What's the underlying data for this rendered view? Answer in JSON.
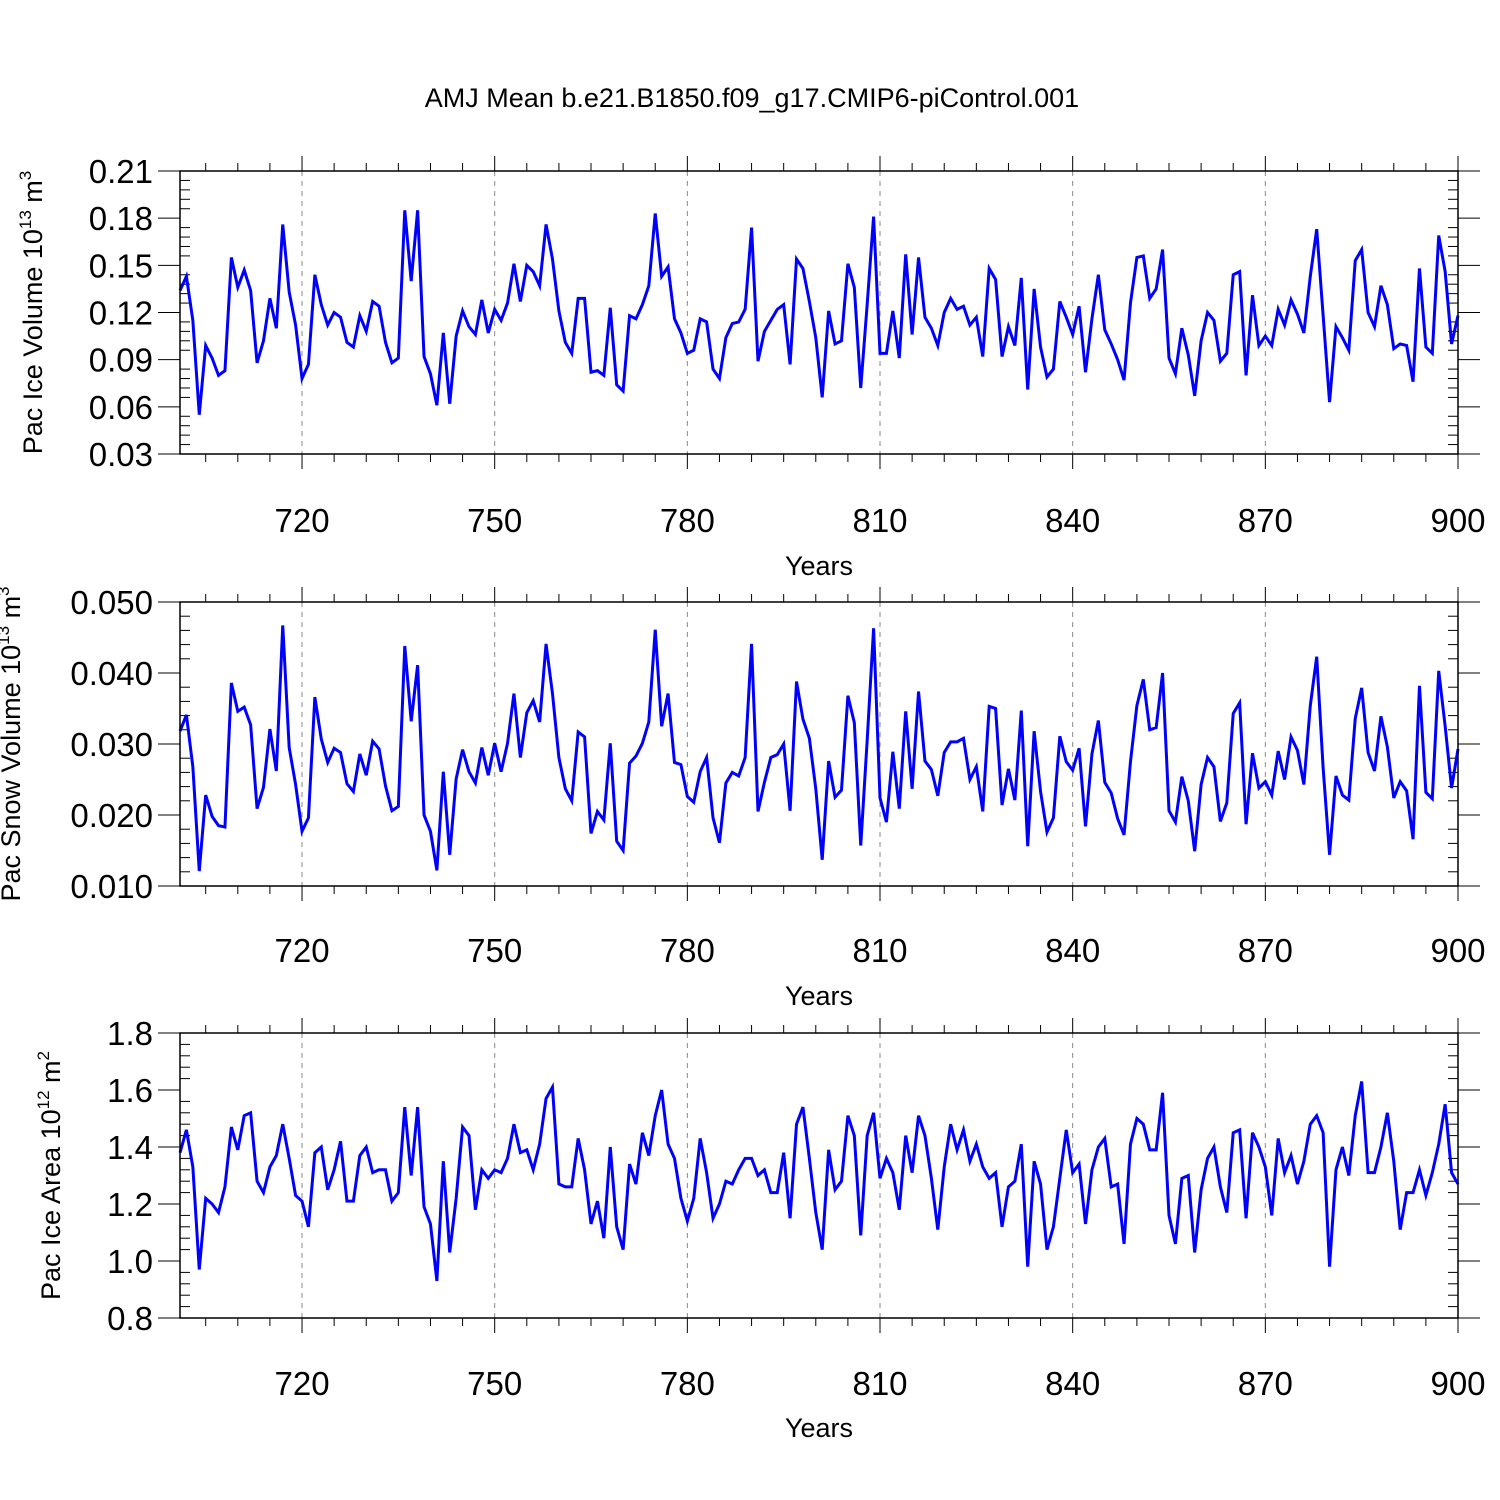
{
  "title": "AMJ Mean b.e21.B1850.f09_g17.CMIP6-piControl.001",
  "line_color": "#0000ff",
  "chart_data": [
    {
      "type": "line",
      "title": "AMJ Mean b.e21.B1850.f09_g17.CMIP6-piControl.001",
      "xlabel": "Years",
      "ylabel": "Pac Ice Volume 10",
      "ylabel_exp": "13",
      "ylabel_unit": " m",
      "ylabel_unit_exp": "3",
      "xlim": [
        701,
        900
      ],
      "ylim": [
        0.03,
        0.21
      ],
      "x_ticks": [
        "720",
        "750",
        "780",
        "810",
        "840",
        "870",
        "900"
      ],
      "y_ticks": [
        "0.03",
        "0.06",
        "0.09",
        "0.12",
        "0.15",
        "0.18",
        "0.21"
      ],
      "grid": "dashed vertical lines at major x ticks",
      "x_start": 701,
      "values": [
        0.134,
        0.143,
        0.115,
        0.055,
        0.099,
        0.091,
        0.08,
        0.083,
        0.155,
        0.136,
        0.147,
        0.134,
        0.088,
        0.102,
        0.129,
        0.11,
        0.176,
        0.133,
        0.112,
        0.078,
        0.087,
        0.144,
        0.125,
        0.112,
        0.12,
        0.117,
        0.101,
        0.098,
        0.118,
        0.108,
        0.127,
        0.124,
        0.101,
        0.088,
        0.091,
        0.185,
        0.14,
        0.185,
        0.092,
        0.081,
        0.061,
        0.107,
        0.062,
        0.105,
        0.121,
        0.111,
        0.106,
        0.128,
        0.107,
        0.122,
        0.115,
        0.126,
        0.151,
        0.127,
        0.15,
        0.146,
        0.137,
        0.176,
        0.154,
        0.121,
        0.101,
        0.094,
        0.129,
        0.129,
        0.082,
        0.083,
        0.08,
        0.123,
        0.074,
        0.07,
        0.118,
        0.116,
        0.125,
        0.137,
        0.183,
        0.143,
        0.149,
        0.116,
        0.107,
        0.094,
        0.096,
        0.116,
        0.114,
        0.084,
        0.078,
        0.104,
        0.113,
        0.114,
        0.122,
        0.174,
        0.089,
        0.108,
        0.115,
        0.122,
        0.125,
        0.087,
        0.154,
        0.148,
        0.127,
        0.104,
        0.066,
        0.121,
        0.1,
        0.102,
        0.151,
        0.136,
        0.072,
        0.125,
        0.181,
        0.094,
        0.094,
        0.121,
        0.091,
        0.157,
        0.106,
        0.155,
        0.117,
        0.11,
        0.099,
        0.12,
        0.129,
        0.122,
        0.124,
        0.112,
        0.117,
        0.092,
        0.148,
        0.141,
        0.092,
        0.111,
        0.099,
        0.142,
        0.071,
        0.135,
        0.098,
        0.079,
        0.084,
        0.127,
        0.117,
        0.106,
        0.124,
        0.082,
        0.116,
        0.144,
        0.109,
        0.1,
        0.09,
        0.077,
        0.126,
        0.155,
        0.156,
        0.129,
        0.135,
        0.16,
        0.091,
        0.081,
        0.11,
        0.093,
        0.067,
        0.102,
        0.12,
        0.115,
        0.089,
        0.094,
        0.144,
        0.146,
        0.08,
        0.131,
        0.099,
        0.105,
        0.099,
        0.122,
        0.112,
        0.128,
        0.119,
        0.107,
        0.143,
        0.173,
        0.118,
        0.063,
        0.111,
        0.104,
        0.096,
        0.153,
        0.16,
        0.12,
        0.111,
        0.137,
        0.125,
        0.097,
        0.1,
        0.099,
        0.076,
        0.148,
        0.098,
        0.094,
        0.169,
        0.146,
        0.1,
        0.118
      ]
    },
    {
      "type": "line",
      "xlabel": "Years",
      "ylabel": "Pac Snow Volume 10",
      "ylabel_exp": "13",
      "ylabel_unit": " m",
      "ylabel_unit_exp": "3",
      "xlim": [
        701,
        900
      ],
      "ylim": [
        0.01,
        0.05
      ],
      "x_ticks": [
        "720",
        "750",
        "780",
        "810",
        "840",
        "870",
        "900"
      ],
      "y_ticks": [
        "0.010",
        "0.020",
        "0.030",
        "0.040",
        "0.050"
      ],
      "grid": "dashed vertical lines at major x ticks",
      "x_start": 701,
      "values": [
        0.0318,
        0.0341,
        0.0268,
        0.0121,
        0.0228,
        0.0198,
        0.0185,
        0.0183,
        0.0386,
        0.0346,
        0.0352,
        0.0327,
        0.0209,
        0.0239,
        0.0321,
        0.0262,
        0.0467,
        0.0295,
        0.0243,
        0.0177,
        0.0196,
        0.0366,
        0.0307,
        0.0274,
        0.0294,
        0.0288,
        0.0244,
        0.0233,
        0.0286,
        0.0256,
        0.0304,
        0.0293,
        0.0241,
        0.0206,
        0.0212,
        0.0438,
        0.0332,
        0.0411,
        0.02,
        0.0177,
        0.0122,
        0.0261,
        0.0144,
        0.0251,
        0.0292,
        0.0261,
        0.0245,
        0.0295,
        0.0256,
        0.0301,
        0.0261,
        0.0301,
        0.0371,
        0.0281,
        0.0344,
        0.0361,
        0.0331,
        0.0441,
        0.0371,
        0.0281,
        0.0237,
        0.022,
        0.0317,
        0.031,
        0.0174,
        0.0205,
        0.0193,
        0.0301,
        0.0163,
        0.015,
        0.0273,
        0.0283,
        0.0301,
        0.0331,
        0.0461,
        0.0325,
        0.0371,
        0.0274,
        0.0271,
        0.0226,
        0.0218,
        0.0261,
        0.0281,
        0.0196,
        0.0161,
        0.0245,
        0.026,
        0.0255,
        0.0281,
        0.0441,
        0.0205,
        0.0246,
        0.0281,
        0.0285,
        0.03,
        0.0206,
        0.0388,
        0.0335,
        0.0308,
        0.0237,
        0.0137,
        0.0276,
        0.0225,
        0.0235,
        0.0368,
        0.033,
        0.0157,
        0.0305,
        0.0463,
        0.0224,
        0.019,
        0.0289,
        0.0209,
        0.0346,
        0.0237,
        0.0374,
        0.0276,
        0.0264,
        0.0227,
        0.0288,
        0.0303,
        0.0303,
        0.0308,
        0.025,
        0.0268,
        0.0205,
        0.0353,
        0.035,
        0.0214,
        0.0265,
        0.0221,
        0.0347,
        0.0156,
        0.0318,
        0.0233,
        0.0176,
        0.0196,
        0.0311,
        0.0275,
        0.0263,
        0.0294,
        0.0184,
        0.0286,
        0.0333,
        0.0246,
        0.0231,
        0.0195,
        0.0172,
        0.0275,
        0.0354,
        0.0391,
        0.032,
        0.0323,
        0.04,
        0.0206,
        0.019,
        0.0254,
        0.022,
        0.0149,
        0.0243,
        0.0281,
        0.0268,
        0.0191,
        0.0217,
        0.0343,
        0.0358,
        0.0187,
        0.0287,
        0.0238,
        0.0247,
        0.0228,
        0.029,
        0.025,
        0.031,
        0.0291,
        0.0243,
        0.0354,
        0.0423,
        0.0266,
        0.0144,
        0.0255,
        0.0228,
        0.0221,
        0.0336,
        0.0379,
        0.0288,
        0.0262,
        0.0339,
        0.0296,
        0.0224,
        0.0247,
        0.0234,
        0.0166,
        0.0382,
        0.0232,
        0.0223,
        0.0403,
        0.0325,
        0.0238,
        0.0293
      ]
    },
    {
      "type": "line",
      "xlabel": "Years",
      "ylabel": "Pac Ice Area 10",
      "ylabel_exp": "12",
      "ylabel_unit": " m",
      "ylabel_unit_exp": "2",
      "xlim": [
        701,
        900
      ],
      "ylim": [
        0.8,
        1.8
      ],
      "x_ticks": [
        "720",
        "750",
        "780",
        "810",
        "840",
        "870",
        "900"
      ],
      "y_ticks": [
        "0.8",
        "1.0",
        "1.2",
        "1.4",
        "1.6",
        "1.8"
      ],
      "grid": "dashed vertical lines at major x ticks",
      "x_start": 701,
      "values": [
        1.38,
        1.46,
        1.33,
        0.97,
        1.22,
        1.2,
        1.17,
        1.26,
        1.47,
        1.39,
        1.51,
        1.52,
        1.28,
        1.24,
        1.33,
        1.37,
        1.48,
        1.36,
        1.23,
        1.21,
        1.12,
        1.38,
        1.4,
        1.25,
        1.32,
        1.42,
        1.21,
        1.21,
        1.37,
        1.4,
        1.31,
        1.32,
        1.32,
        1.21,
        1.24,
        1.54,
        1.3,
        1.54,
        1.19,
        1.13,
        0.93,
        1.35,
        1.03,
        1.22,
        1.47,
        1.44,
        1.18,
        1.32,
        1.29,
        1.32,
        1.31,
        1.36,
        1.48,
        1.38,
        1.39,
        1.32,
        1.41,
        1.57,
        1.61,
        1.27,
        1.26,
        1.26,
        1.43,
        1.32,
        1.13,
        1.21,
        1.08,
        1.4,
        1.12,
        1.04,
        1.34,
        1.27,
        1.45,
        1.37,
        1.51,
        1.6,
        1.41,
        1.36,
        1.22,
        1.14,
        1.22,
        1.43,
        1.31,
        1.15,
        1.2,
        1.28,
        1.27,
        1.32,
        1.36,
        1.36,
        1.3,
        1.32,
        1.24,
        1.24,
        1.38,
        1.15,
        1.48,
        1.54,
        1.36,
        1.17,
        1.04,
        1.39,
        1.25,
        1.28,
        1.51,
        1.44,
        1.09,
        1.44,
        1.52,
        1.29,
        1.36,
        1.31,
        1.18,
        1.44,
        1.31,
        1.51,
        1.44,
        1.29,
        1.11,
        1.33,
        1.48,
        1.39,
        1.46,
        1.35,
        1.41,
        1.33,
        1.29,
        1.31,
        1.12,
        1.26,
        1.28,
        1.41,
        0.98,
        1.35,
        1.27,
        1.04,
        1.12,
        1.29,
        1.46,
        1.31,
        1.34,
        1.13,
        1.32,
        1.4,
        1.43,
        1.26,
        1.27,
        1.06,
        1.41,
        1.5,
        1.48,
        1.39,
        1.39,
        1.59,
        1.16,
        1.06,
        1.29,
        1.3,
        1.03,
        1.25,
        1.36,
        1.4,
        1.26,
        1.17,
        1.45,
        1.46,
        1.15,
        1.45,
        1.4,
        1.33,
        1.16,
        1.43,
        1.31,
        1.37,
        1.27,
        1.35,
        1.48,
        1.51,
        1.45,
        0.98,
        1.32,
        1.4,
        1.3,
        1.51,
        1.63,
        1.31,
        1.31,
        1.4,
        1.52,
        1.35,
        1.11,
        1.24,
        1.24,
        1.32,
        1.23,
        1.31,
        1.41,
        1.55,
        1.31,
        1.27
      ]
    }
  ]
}
